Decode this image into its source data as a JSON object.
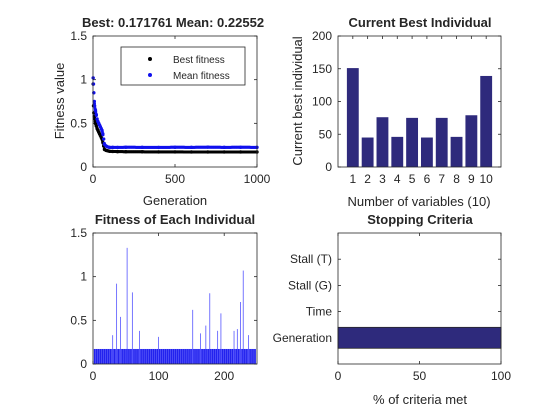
{
  "chart_data": [
    {
      "type": "scatter",
      "title": "Best: 0.171761 Mean: 0.22552",
      "xlabel": "Generation",
      "ylabel": "Fitness value",
      "xlim": [
        0,
        1000
      ],
      "ylim": [
        0,
        1.5
      ],
      "xticks": [
        "0",
        "500",
        "1000"
      ],
      "yticks": [
        "0",
        "0.5",
        "1",
        "1.5"
      ],
      "legend": {
        "placement": "top-right",
        "entries": [
          "Best fitness",
          "Mean fitness"
        ]
      },
      "series": [
        {
          "name": "Best fitness",
          "color": "#000000",
          "x": [
            1,
            3,
            5,
            8,
            10,
            15,
            20,
            25,
            30,
            35,
            40,
            45,
            50,
            55,
            60,
            65,
            70,
            80,
            90,
            100,
            120,
            150,
            200,
            300,
            400,
            500,
            600,
            700,
            800,
            900,
            1000
          ],
          "y": [
            0.95,
            0.7,
            0.62,
            0.58,
            0.55,
            0.5,
            0.47,
            0.44,
            0.42,
            0.4,
            0.38,
            0.36,
            0.34,
            0.32,
            0.28,
            0.24,
            0.2,
            0.19,
            0.185,
            0.18,
            0.178,
            0.176,
            0.175,
            0.174,
            0.173,
            0.173,
            0.172,
            0.172,
            0.172,
            0.172,
            0.172
          ]
        },
        {
          "name": "Mean fitness",
          "color": "#1010ee",
          "x": [
            1,
            3,
            5,
            8,
            10,
            15,
            20,
            25,
            30,
            35,
            40,
            45,
            50,
            55,
            60,
            65,
            70,
            80,
            90,
            100,
            120,
            150,
            200,
            300,
            400,
            500,
            600,
            700,
            800,
            900,
            1000
          ],
          "y": [
            1.02,
            0.95,
            0.85,
            0.75,
            0.7,
            0.65,
            0.6,
            0.55,
            0.52,
            0.5,
            0.48,
            0.46,
            0.44,
            0.42,
            0.38,
            0.32,
            0.26,
            0.24,
            0.23,
            0.225,
            0.225,
            0.224,
            0.226,
            0.225,
            0.224,
            0.226,
            0.225,
            0.227,
            0.225,
            0.226,
            0.225
          ]
        }
      ]
    },
    {
      "type": "bar",
      "title": "Current Best Individual",
      "xlabel": "Number of variables (10)",
      "ylabel": "Current best individual",
      "categories": [
        "1",
        "2",
        "3",
        "4",
        "5",
        "6",
        "7",
        "8",
        "9",
        "10"
      ],
      "values": [
        151,
        45,
        76,
        46,
        75,
        45,
        75,
        46,
        79,
        139
      ],
      "ylim": [
        0,
        200
      ],
      "yticks": [
        "0",
        "50",
        "100",
        "150",
        "200"
      ],
      "color": "#2e2a7c"
    },
    {
      "type": "bar",
      "title": "Fitness of Each Individual",
      "xlabel": "",
      "ylabel": "",
      "xlim": [
        0,
        250
      ],
      "ylim": [
        0,
        1.5
      ],
      "xticks": [
        "0",
        "100",
        "200"
      ],
      "yticks": [
        "0",
        "0.5",
        "1",
        "1.5"
      ],
      "baseline_value": 0.172,
      "spikes": [
        {
          "x": 30,
          "y": 0.33
        },
        {
          "x": 36,
          "y": 0.92
        },
        {
          "x": 42,
          "y": 0.54
        },
        {
          "x": 52,
          "y": 1.33
        },
        {
          "x": 60,
          "y": 0.82
        },
        {
          "x": 71,
          "y": 0.38
        },
        {
          "x": 100,
          "y": 0.31
        },
        {
          "x": 152,
          "y": 0.62
        },
        {
          "x": 164,
          "y": 0.35
        },
        {
          "x": 172,
          "y": 0.44
        },
        {
          "x": 178,
          "y": 0.81
        },
        {
          "x": 190,
          "y": 0.38
        },
        {
          "x": 195,
          "y": 0.58
        },
        {
          "x": 215,
          "y": 0.38
        },
        {
          "x": 220,
          "y": 0.4
        },
        {
          "x": 225,
          "y": 0.71
        },
        {
          "x": 229,
          "y": 1.07
        },
        {
          "x": 237,
          "y": 0.33
        }
      ],
      "color": "#2222ee"
    },
    {
      "type": "bar",
      "orientation": "horizontal",
      "title": "Stopping Criteria",
      "xlabel": "% of criteria met",
      "categories": [
        "Stall (T)",
        "Stall (G)",
        "Time",
        "Generation"
      ],
      "values": [
        0,
        0,
        0,
        100
      ],
      "xlim": [
        0,
        100
      ],
      "xticks": [
        "0",
        "50",
        "100"
      ],
      "color": "#2e2a7c"
    }
  ]
}
